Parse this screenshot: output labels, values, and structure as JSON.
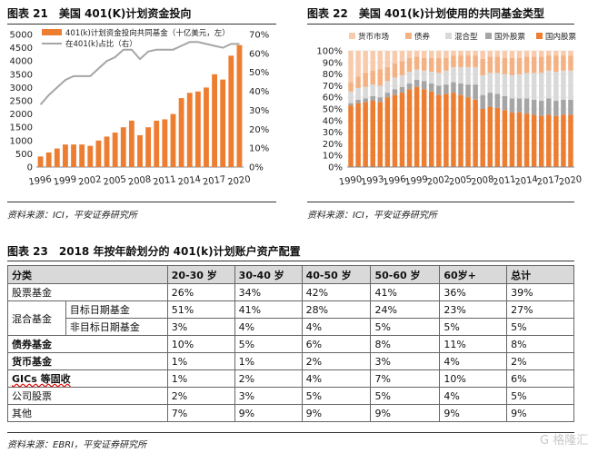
{
  "fig21": {
    "title": "图表 21　美国 401(K)计划资金投向",
    "source": "资料来源：ICI，平安证券研究所"
  },
  "fig22": {
    "title": "图表 22　美国 401(k)计划使用的共同基金类型",
    "source": "资料来源：ICI，平安证券研究所"
  },
  "fig23": {
    "title": "图表 23　2018 年按年龄划分的 401(k)计划账户资产配置",
    "source": "资料来源：EBRI，平安证券研究所"
  },
  "watermark": "G 格隆汇",
  "table": {
    "headers": [
      "分类",
      "20-30 岁",
      "30-40 岁",
      "40-50 岁",
      "50-60 岁",
      "60岁+",
      "总计"
    ],
    "rows": [
      {
        "label": "股票基金",
        "values": [
          "26%",
          "34%",
          "42%",
          "41%",
          "36%",
          "39%"
        ]
      },
      {
        "group": "混合基金",
        "label": "目标日期基金",
        "values": [
          "51%",
          "41%",
          "28%",
          "24%",
          "23%",
          "27%"
        ]
      },
      {
        "label": "非目标日期基金",
        "values": [
          "3%",
          "4%",
          "4%",
          "5%",
          "5%",
          "5%"
        ]
      },
      {
        "label": "债券基金",
        "values": [
          "10%",
          "5%",
          "6%",
          "8%",
          "11%",
          "8%"
        ]
      },
      {
        "label": "货币基金",
        "values": [
          "1%",
          "1%",
          "2%",
          "3%",
          "4%",
          "2%"
        ]
      },
      {
        "label": "GICs 等固收",
        "values": [
          "1%",
          "2%",
          "4%",
          "7%",
          "10%",
          "6%"
        ]
      },
      {
        "label": "公司股票",
        "values": [
          "2%",
          "3%",
          "5%",
          "5%",
          "4%",
          "5%"
        ]
      },
      {
        "label": "其他",
        "values": [
          "7%",
          "9%",
          "9%",
          "9%",
          "9%",
          "9%"
        ]
      }
    ]
  },
  "chart_data": [
    {
      "type": "bar",
      "title": "美国 401(K)计划资金投向",
      "years": [
        1996,
        1997,
        1998,
        1999,
        2000,
        2001,
        2002,
        2003,
        2004,
        2005,
        2006,
        2007,
        2008,
        2009,
        2010,
        2011,
        2012,
        2013,
        2014,
        2015,
        2016,
        2017,
        2018,
        2019,
        2020
      ],
      "x_tick_labels": [
        "1996",
        "1999",
        "2002",
        "2005",
        "2008",
        "2011",
        "2014",
        "2017",
        "2020"
      ],
      "series": [
        {
          "name": "401(k)计划资金投向共同基金（十亿美元，左）",
          "axis": "left",
          "kind": "bar",
          "color": "#ed7d31",
          "values": [
            400,
            550,
            700,
            850,
            850,
            850,
            800,
            1000,
            1150,
            1300,
            1500,
            1750,
            1200,
            1500,
            1750,
            1800,
            2000,
            2600,
            2800,
            2850,
            3000,
            3500,
            3300,
            4200,
            4600
          ]
        },
        {
          "name": "在401(k)占比（右）",
          "axis": "right",
          "kind": "line",
          "color": "#a6a6a6",
          "values": [
            33,
            38,
            42,
            46,
            48,
            48,
            48,
            52,
            56,
            58,
            62,
            62,
            57,
            61,
            62,
            62,
            62,
            64,
            66,
            66,
            65,
            64,
            63,
            65,
            65
          ]
        }
      ],
      "left_axis": {
        "min": 0,
        "max": 5000,
        "ticks": [
          0,
          500,
          1000,
          1500,
          2000,
          2500,
          3000,
          3500,
          4000,
          4500,
          5000
        ]
      },
      "right_axis": {
        "min": 0,
        "max": 70,
        "ticks": [
          "0%",
          "10%",
          "20%",
          "30%",
          "40%",
          "50%",
          "60%",
          "70%"
        ]
      }
    },
    {
      "type": "bar",
      "stacked": true,
      "title": "美国 401(k)计划使用的共同基金类型",
      "years": [
        1990,
        1991,
        1992,
        1993,
        1994,
        1995,
        1996,
        1997,
        1998,
        1999,
        2000,
        2001,
        2002,
        2003,
        2004,
        2005,
        2006,
        2007,
        2008,
        2009,
        2010,
        2011,
        2012,
        2013,
        2014,
        2015,
        2016,
        2017,
        2018,
        2019,
        2020
      ],
      "x_tick_labels": [
        "1990",
        "1993",
        "1996",
        "1999",
        "2002",
        "2005",
        "2008",
        "2011",
        "2014",
        "2017",
        "2020"
      ],
      "y_axis": {
        "min": 0,
        "max": 100,
        "ticks": [
          "0%",
          "10%",
          "20%",
          "30%",
          "40%",
          "50%",
          "60%",
          "70%",
          "80%",
          "90%",
          "100%"
        ]
      },
      "series": [
        {
          "name": "国内股票",
          "color": "#ed7d31",
          "values": [
            53,
            55,
            56,
            57,
            56,
            60,
            62,
            64,
            67,
            69,
            67,
            65,
            62,
            63,
            64,
            62,
            60,
            58,
            50,
            52,
            51,
            49,
            47,
            47,
            46,
            45,
            44,
            45,
            44,
            45,
            45
          ]
        },
        {
          "name": "国外股票",
          "color": "#a5a5a5",
          "values": [
            2,
            3,
            3,
            4,
            4,
            4,
            5,
            5,
            5,
            6,
            7,
            7,
            8,
            8,
            9,
            10,
            11,
            13,
            12,
            12,
            12,
            12,
            12,
            12,
            13,
            13,
            13,
            14,
            13,
            13,
            13
          ]
        },
        {
          "name": "混合型",
          "color": "#d9d9d9",
          "values": [
            10,
            10,
            10,
            10,
            10,
            10,
            10,
            10,
            10,
            9,
            9,
            10,
            11,
            12,
            13,
            14,
            15,
            15,
            17,
            17,
            18,
            19,
            20,
            21,
            22,
            23,
            24,
            24,
            25,
            25,
            25
          ]
        },
        {
          "name": "债券",
          "color": "#f4b183",
          "values": [
            8,
            10,
            12,
            12,
            14,
            12,
            12,
            12,
            12,
            11,
            11,
            12,
            13,
            11,
            10,
            10,
            10,
            10,
            14,
            14,
            14,
            14,
            15,
            14,
            14,
            14,
            14,
            13,
            14,
            13,
            13
          ]
        },
        {
          "name": "货币市场",
          "color": "#f8cbad",
          "values": [
            27,
            22,
            19,
            17,
            16,
            14,
            11,
            9,
            6,
            5,
            6,
            6,
            6,
            6,
            4,
            4,
            4,
            4,
            7,
            5,
            5,
            6,
            6,
            6,
            5,
            5,
            5,
            4,
            4,
            4,
            4
          ]
        }
      ]
    }
  ]
}
